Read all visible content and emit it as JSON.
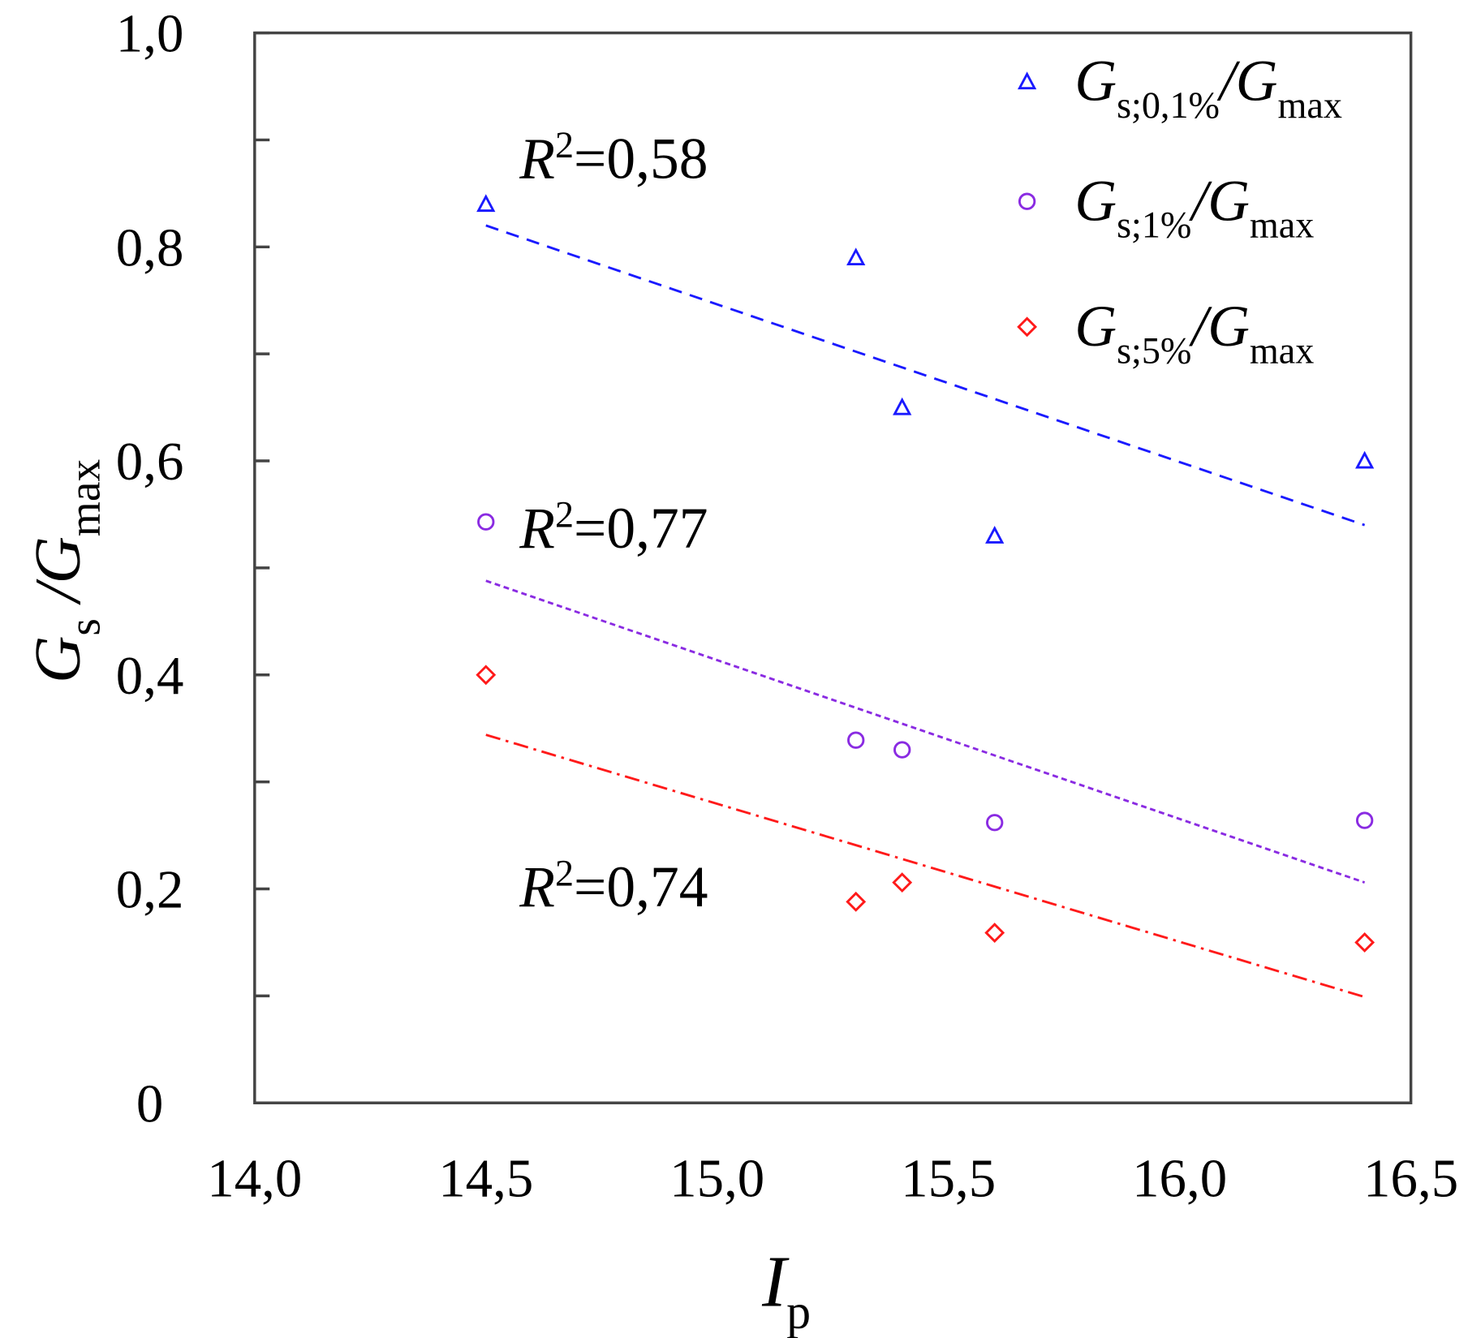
{
  "chart_data": {
    "type": "scatter",
    "x_label": [
      "I",
      "p"
    ],
    "y_label": [
      "G",
      "s",
      " /G",
      "max"
    ],
    "xlim": [
      14.0,
      16.5
    ],
    "xticks": [
      {
        "value": 14.0,
        "label": "14,0"
      },
      {
        "value": 14.5,
        "label": "14,5"
      },
      {
        "value": 15.0,
        "label": "15,0"
      },
      {
        "value": 15.5,
        "label": "15,5"
      },
      {
        "value": 16.0,
        "label": "16,0"
      },
      {
        "value": 16.5,
        "label": "16,5"
      }
    ],
    "ylim": [
      0,
      1.0
    ],
    "yticks": [
      0,
      {
        "value": 0.2,
        "label": "0,2"
      },
      {
        "value": 0.4,
        "label": "0,4"
      },
      {
        "value": 0.6,
        "label": "0,6"
      },
      {
        "value": 0.8,
        "label": "0,8"
      },
      {
        "value": 1.0,
        "label": "1,0"
      }
    ],
    "yminor_ticks": [
      0.1,
      0.3,
      0.5,
      0.7,
      0.9
    ],
    "legend": "upper right",
    "series": [
      {
        "name": [
          "G",
          "s;0,1%",
          "/G",
          "max"
        ],
        "color": "#1a1aff",
        "marker": "triangle",
        "x": [
          14.5,
          15.3,
          15.4,
          15.6,
          16.4
        ],
        "values": [
          0.84,
          0.79,
          0.65,
          0.53,
          0.6
        ],
        "fit": {
          "x": [
            14.5,
            16.4
          ],
          "values": [
            0.82,
            0.54
          ],
          "dash": "14 9"
        },
        "annotation": {
          "symbol": "R",
          "sup": "2",
          "text": "=0,58"
        }
      },
      {
        "name": [
          "G",
          "s;1%",
          "/G",
          "max"
        ],
        "color": "#8a2be2",
        "marker": "circle",
        "x": [
          14.5,
          15.3,
          15.4,
          15.6,
          16.4
        ],
        "values": [
          0.543,
          0.339,
          0.33,
          0.262,
          0.264
        ],
        "fit": {
          "x": [
            14.5,
            16.4
          ],
          "values": [
            0.488,
            0.206
          ],
          "dash": "6 4"
        },
        "annotation": {
          "symbol": "R",
          "sup": "2",
          "text": "=0,77"
        }
      },
      {
        "name": [
          "G",
          "s;5%",
          "/G",
          "max"
        ],
        "color": "#ff1a1a",
        "marker": "diamond",
        "x": [
          14.5,
          15.3,
          15.4,
          15.6,
          16.4
        ],
        "values": [
          0.4,
          0.188,
          0.206,
          0.159,
          0.15
        ],
        "fit": {
          "x": [
            14.5,
            16.4
          ],
          "values": [
            0.344,
            0.099
          ],
          "dash": "16 6 3 6"
        },
        "annotation": {
          "symbol": "R",
          "sup": "2",
          "text": "=0,74"
        }
      }
    ]
  }
}
